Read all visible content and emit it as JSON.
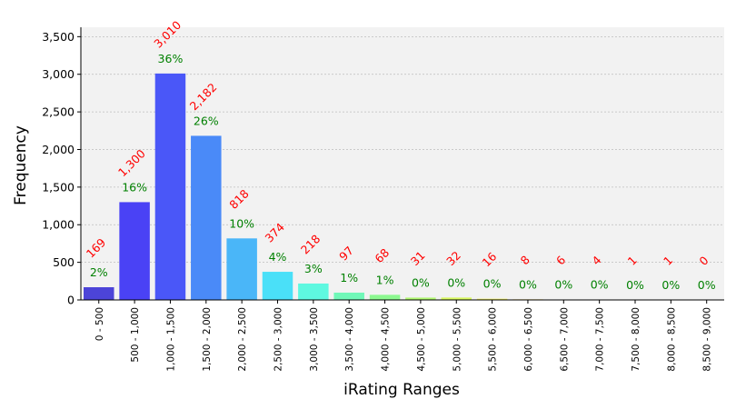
{
  "chart_data": {
    "type": "bar",
    "xlabel": "iRating Ranges",
    "ylabel": "Frequency",
    "ylim": [
      0,
      3625
    ],
    "yticks": [
      0,
      500,
      1000,
      1500,
      2000,
      2500,
      3000,
      3500
    ],
    "ytick_labels": [
      "0",
      "500",
      "1,000",
      "1,500",
      "2,000",
      "2,500",
      "3,000",
      "3,500"
    ],
    "grid": true,
    "categories": [
      "0 - 500",
      "500 - 1,000",
      "1,000 - 1,500",
      "1,500 - 2,000",
      "2,000 - 2,500",
      "2,500 - 3,000",
      "3,000 - 3,500",
      "3,500 - 4,000",
      "4,000 - 4,500",
      "4,500 - 5,000",
      "5,000 - 5,500",
      "5,500 - 6,000",
      "6,000 - 6,500",
      "6,500 - 7,000",
      "7,000 - 7,500",
      "7,500 - 8,000",
      "8,000 - 8,500",
      "8,500 - 9,000"
    ],
    "values": [
      169,
      1300,
      3010,
      2182,
      818,
      374,
      218,
      97,
      68,
      31,
      32,
      16,
      8,
      6,
      4,
      1,
      1,
      0
    ],
    "count_labels": [
      "169",
      "1,300",
      "3,010",
      "2,182",
      "818",
      "374",
      "218",
      "97",
      "68",
      "31",
      "32",
      "16",
      "8",
      "6",
      "4",
      "1",
      "1",
      "0"
    ],
    "percent_labels": [
      "2%",
      "16%",
      "36%",
      "26%",
      "10%",
      "4%",
      "3%",
      "1%",
      "1%",
      "0%",
      "0%",
      "0%",
      "0%",
      "0%",
      "0%",
      "0%",
      "0%",
      "0%"
    ],
    "colors": [
      "#4c44d8",
      "#4a42f5",
      "#4a57f8",
      "#4a8af8",
      "#4ab6f8",
      "#4ae0f8",
      "#5ef8e0",
      "#70f8b8",
      "#8cf890",
      "#b0f870",
      "#d8f860",
      "#f0f060",
      "#f8d060",
      "#f8b060",
      "#f89060",
      "#f87060",
      "#f85060",
      "#f84040"
    ],
    "count_label_color": "#ff0000",
    "percent_label_color": "#008000",
    "plot_background": "#f2f2f2"
  }
}
